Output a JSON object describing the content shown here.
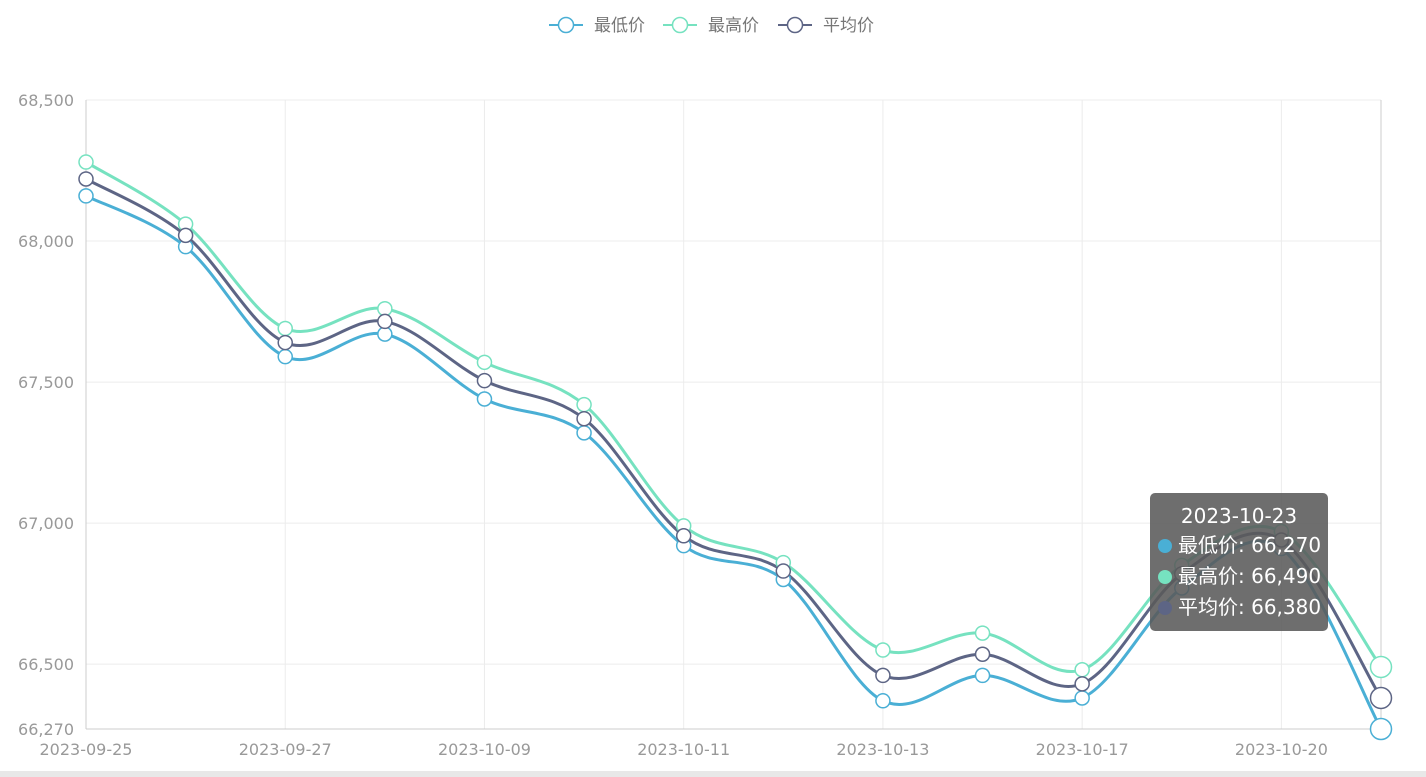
{
  "colors": {
    "low": "#4aafd5",
    "high": "#76e2c0",
    "avg": "#5d6585",
    "grid": "#ececec",
    "axis": "#cccccc",
    "tick_text": "#999999",
    "legend_text": "#777777"
  },
  "chart_data": {
    "type": "line",
    "smooth": true,
    "x_tick_labels": [
      "2023-09-25",
      "2023-09-27",
      "2023-10-09",
      "2023-10-11",
      "2023-10-13",
      "2023-10-17",
      "2023-10-20"
    ],
    "y_tick_labels": [
      "68,500",
      "68,000",
      "67,500",
      "67,000",
      "66,500",
      "66,270"
    ],
    "y_ticks": [
      68500,
      68000,
      67500,
      67000,
      66500,
      66270
    ],
    "ylim": [
      66270,
      68500
    ],
    "grid": true,
    "legend_position": "top-center",
    "point_count": 14,
    "series": [
      {
        "name": "最低价",
        "color": "#4aafd5",
        "values": [
          68160,
          67980,
          67590,
          67670,
          67440,
          67320,
          66920,
          66800,
          66370,
          66460,
          66380,
          66770,
          66910,
          66270
        ]
      },
      {
        "name": "最高价",
        "color": "#76e2c0",
        "values": [
          68280,
          68060,
          67690,
          67760,
          67570,
          67420,
          66990,
          66860,
          66550,
          66610,
          66480,
          66850,
          66970,
          66490
        ]
      },
      {
        "name": "平均价",
        "color": "#5d6585",
        "values": [
          68220,
          68020,
          67640,
          67715,
          67505,
          67370,
          66955,
          66830,
          66460,
          66535,
          66430,
          66820,
          66940,
          66380
        ]
      }
    ],
    "highlight_index": 13
  },
  "tooltip": {
    "title": "2023-10-23",
    "rows": [
      {
        "label": "最低价",
        "value": "66,270",
        "color": "#4aafd5"
      },
      {
        "label": "最高价",
        "value": "66,490",
        "color": "#76e2c0"
      },
      {
        "label": "平均价",
        "value": "66,380",
        "color": "#5d6585"
      }
    ]
  }
}
